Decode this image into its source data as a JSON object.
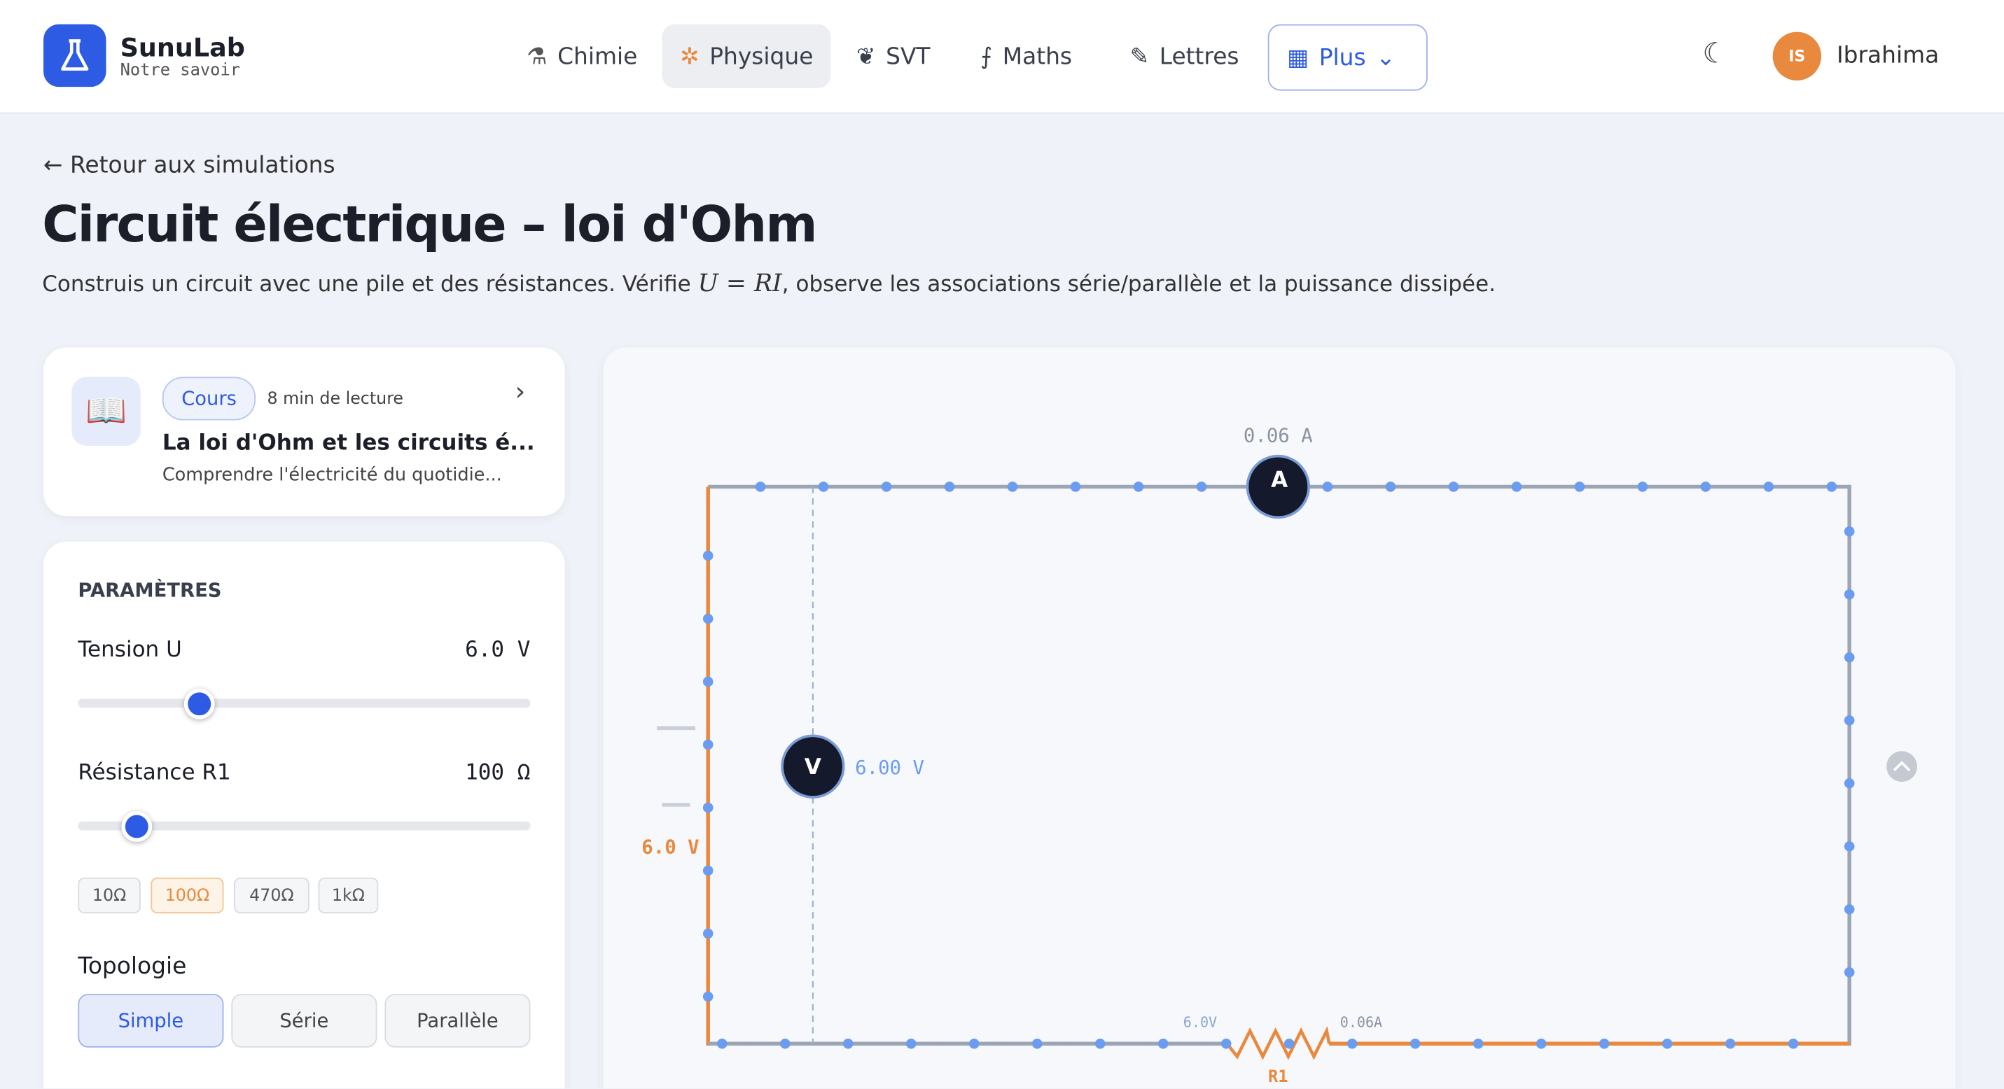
{
  "header": {
    "brand": "SunuLab",
    "tagline": "Notre savoir",
    "nav": [
      "Chimie",
      "Physique",
      "SVT",
      "Maths",
      "Lettres",
      "Plus"
    ],
    "avatar": "IS",
    "user": "Ibrahima"
  },
  "page": {
    "back": "Retour aux simulations",
    "title": "Circuit électrique – loi d'Ohm",
    "description_before": "Construis un circuit avec une pile et des résistances. Vérifie",
    "formula": "U = RI",
    "description_after": ", observe les associations série/parallèle et la puissance dissipée."
  },
  "course": {
    "badge": "Cours",
    "reading": "8 min de lecture",
    "title": "La loi d'Ohm et les circuits é...",
    "subtitle": "Comprendre l'électricité du quotidie..."
  },
  "params": {
    "heading": "PARAMÈTRES",
    "tension_label": "Tension U",
    "tension_value": "6.0 V",
    "resistance_label": "Résistance R1",
    "resistance_value": "100 Ω",
    "presets": [
      "10Ω",
      "100Ω",
      "470Ω",
      "1kΩ"
    ],
    "topology_label": "Topologie",
    "topologies": [
      "Simple",
      "Série",
      "Parallèle"
    ]
  },
  "circuit": {
    "ammeter": "A",
    "ammeter_reading": "0.06 A",
    "voltmeter": "V",
    "voltmeter_reading": "6.00 V",
    "battery_label": "6.0 V",
    "resistor_voltage": "6.0V",
    "resistor_current": "0.06A",
    "resistor": "R1"
  }
}
